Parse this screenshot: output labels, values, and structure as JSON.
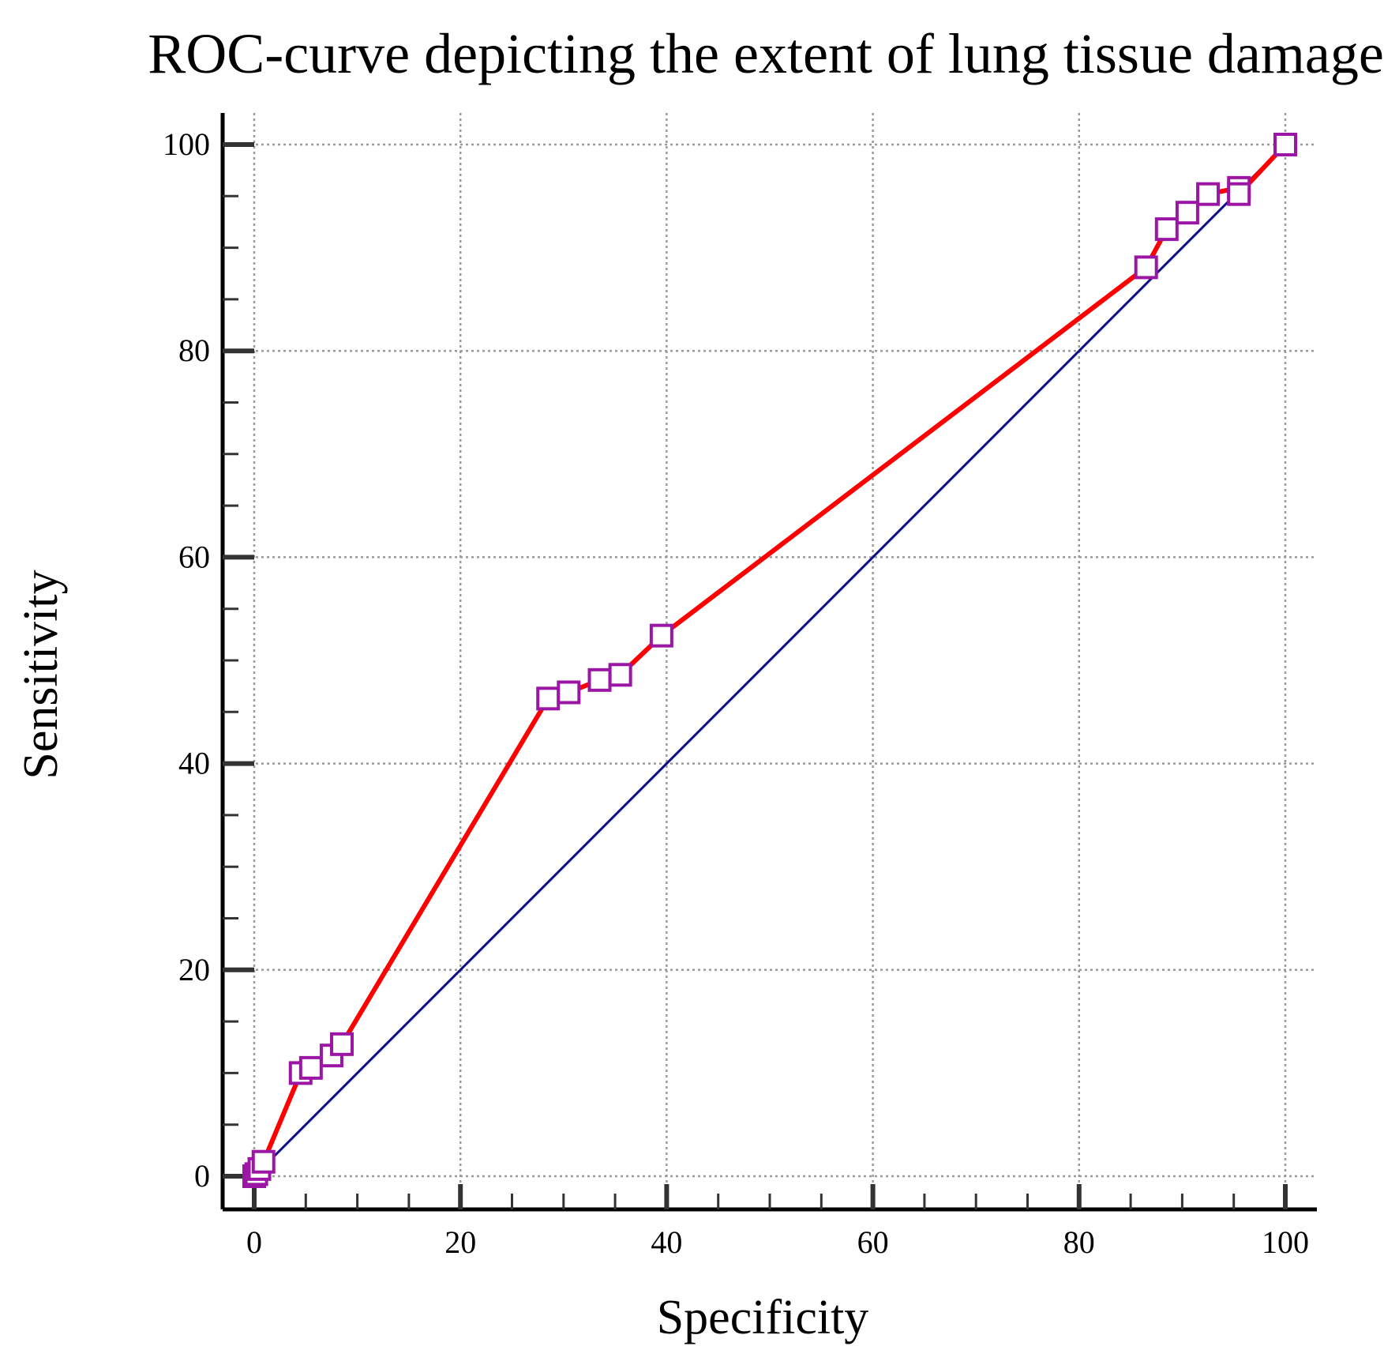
{
  "chart_data": {
    "type": "line",
    "title": "ROC-curve depicting the extent of lung tissue damage",
    "xlabel": "Specificity",
    "ylabel": "Sensitivity",
    "xlim": [
      0,
      100
    ],
    "ylim": [
      0,
      100
    ],
    "xticks": [
      "0",
      "20",
      "40",
      "60",
      "80",
      "100"
    ],
    "yticks": [
      "0",
      "20",
      "40",
      "60",
      "80",
      "100"
    ],
    "grid": true,
    "colors": {
      "roc_line": "#ff0000",
      "marker": "#9b16a5",
      "reference_line": "#0d0d8c",
      "axis": "#000000",
      "grid": "#9a9a9a"
    },
    "series": [
      {
        "type": "line-with-markers",
        "x": [
          0,
          0.2,
          0.5,
          0.9,
          4.5,
          5.5,
          7.5,
          8.5,
          28.5,
          30.5,
          33.5,
          35.5,
          39.5,
          86.5,
          88.5,
          90.5,
          92.5,
          95.5,
          95.5,
          100
        ],
        "y": [
          0,
          0.2,
          0.7,
          1.4,
          10,
          10.5,
          11.7,
          12.8,
          46.3,
          46.9,
          48.1,
          48.6,
          52.4,
          88.1,
          91.8,
          93.4,
          95.2,
          95.8,
          95.2,
          100
        ]
      },
      {
        "type": "reference",
        "x": [
          0,
          100
        ],
        "y": [
          0,
          100
        ]
      }
    ]
  }
}
